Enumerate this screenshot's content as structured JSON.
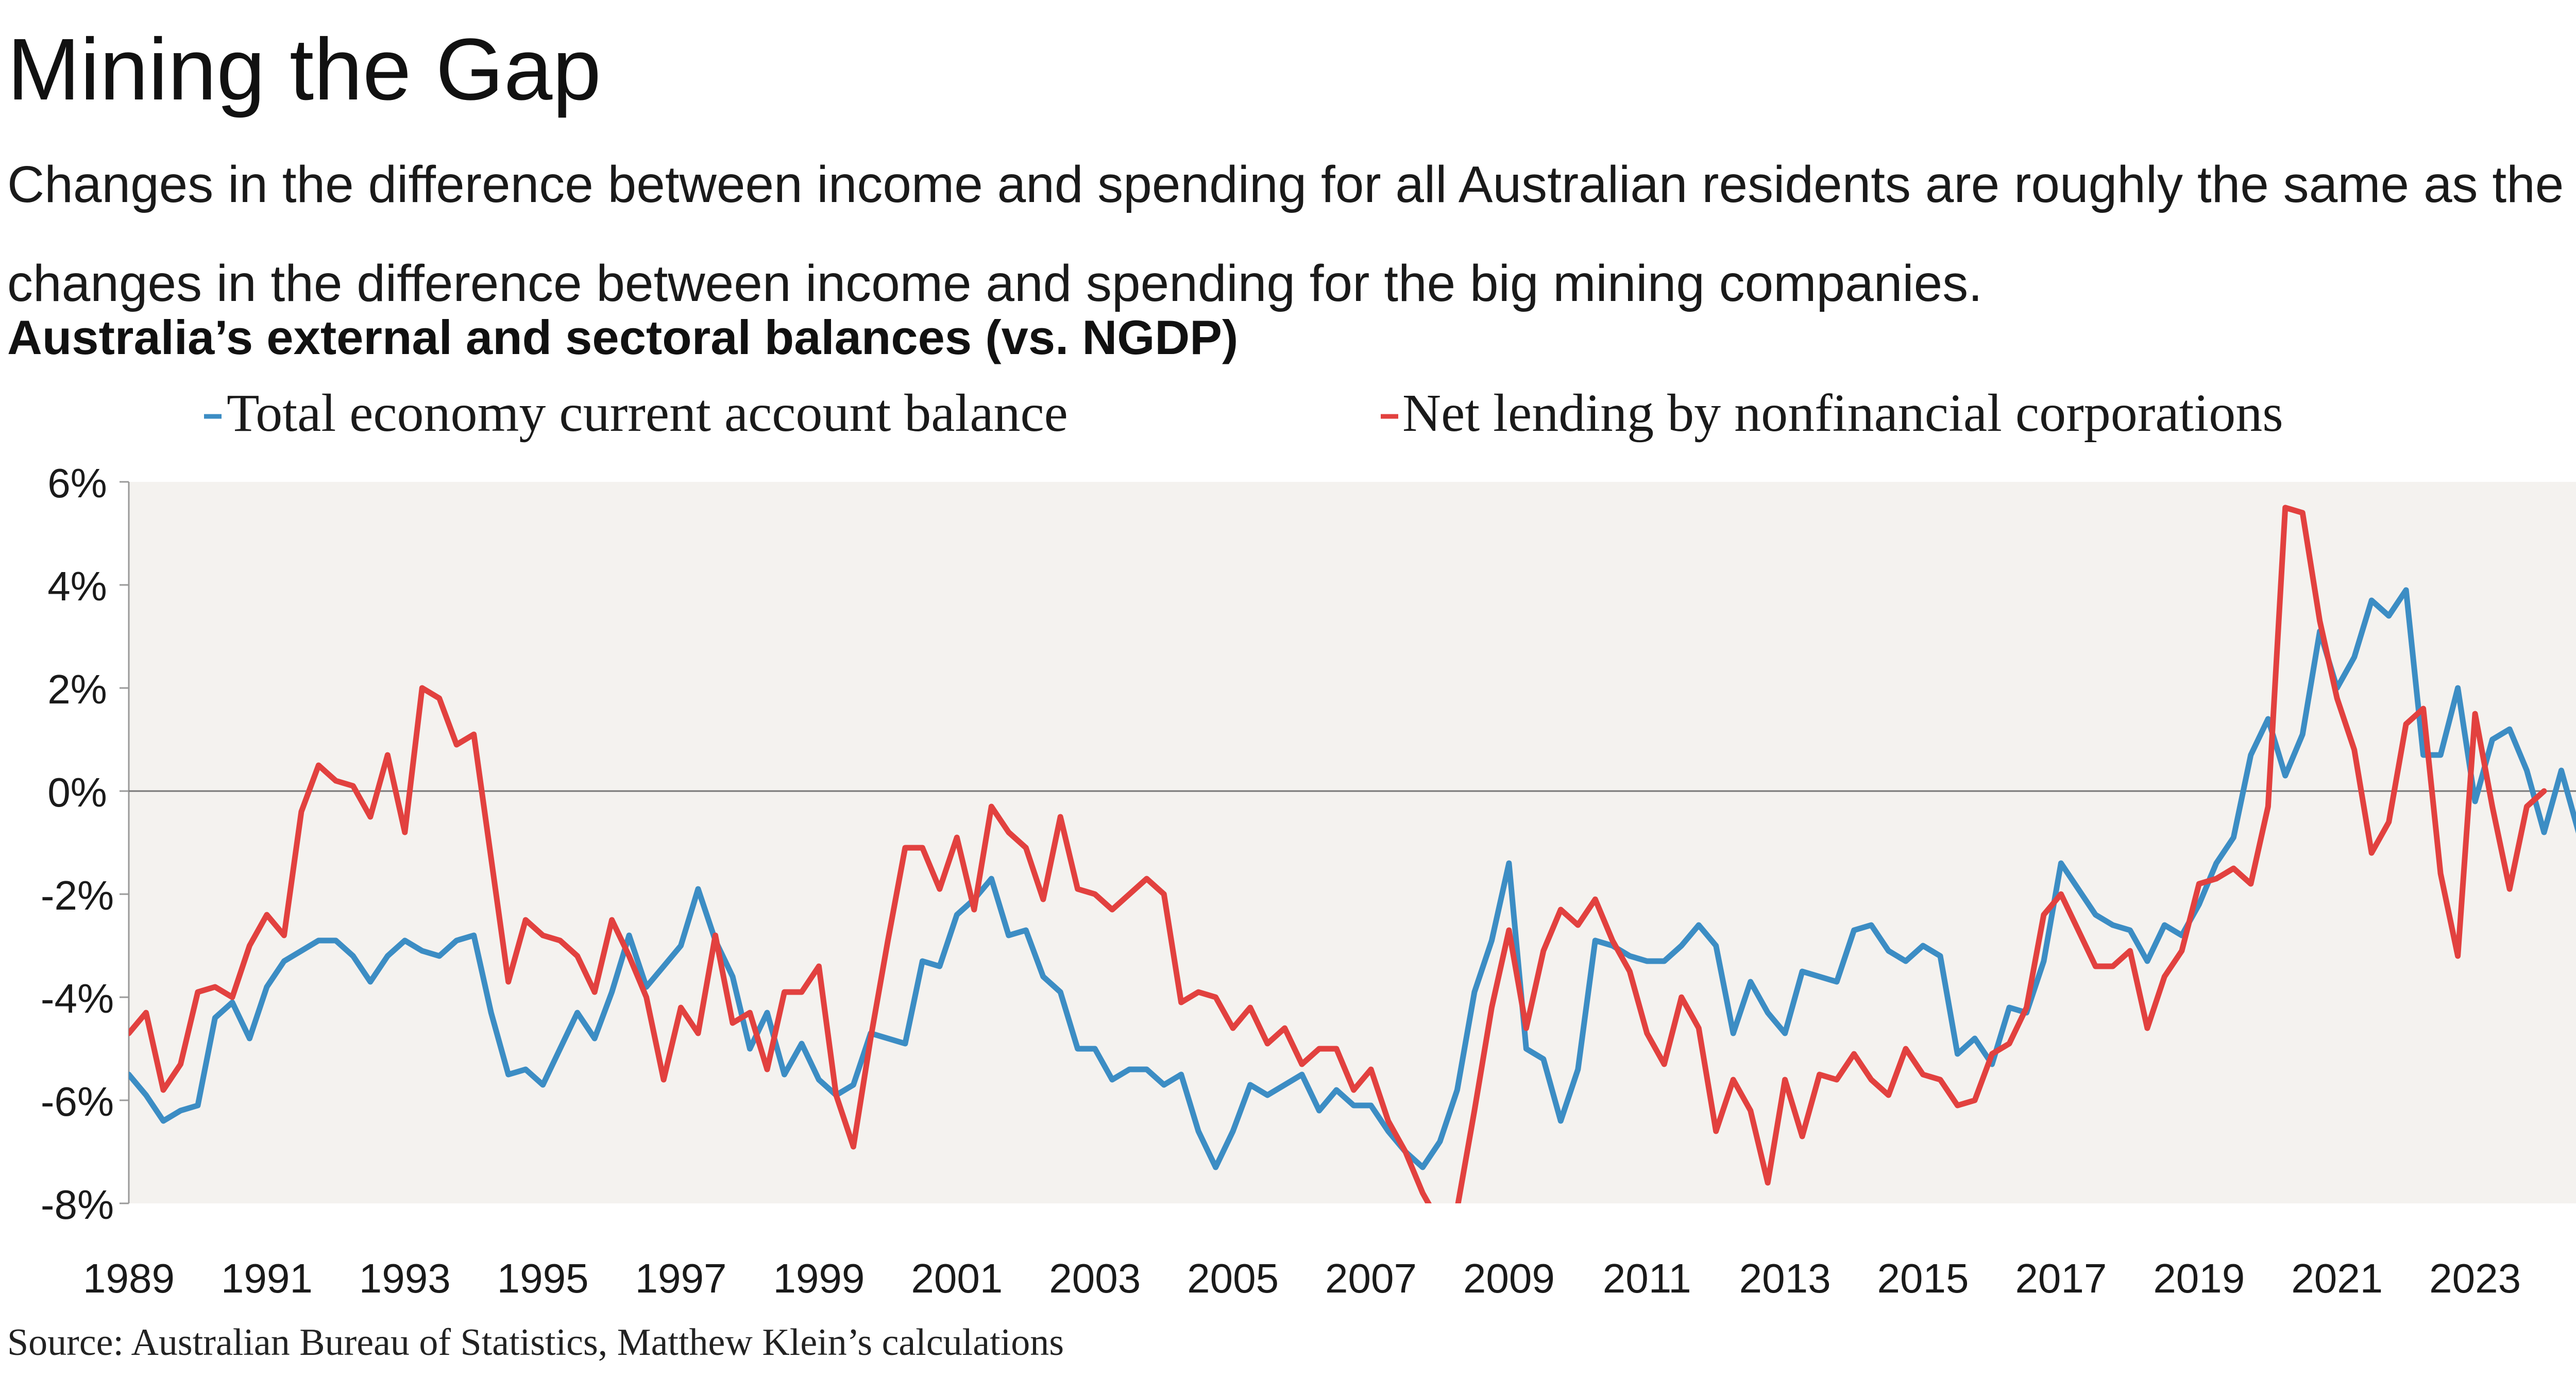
{
  "header": {
    "title": "Mining the Gap",
    "subtitle": "Changes in the difference between income and spending for all Australian residents are roughly the same as the changes in the difference between income and spending for the big mining companies.",
    "chart_title": "Australia’s external and sectoral balances (vs. NGDP)"
  },
  "footer": {
    "source": "Source: Australian Bureau of Statistics, Matthew Klein’s calculations"
  },
  "chart_data": {
    "type": "line",
    "title": "Australia’s external and sectoral balances (vs. NGDP)",
    "xlabel": "",
    "ylabel": "",
    "x_ticks": [
      1989,
      1991,
      1993,
      1995,
      1997,
      1999,
      2001,
      2003,
      2005,
      2007,
      2009,
      2011,
      2013,
      2015,
      2017,
      2019,
      2021,
      2023
    ],
    "y_ticks": [
      -8,
      -6,
      -4,
      -2,
      0,
      2,
      4,
      6
    ],
    "y_tick_labels": [
      "-8%",
      "-6%",
      "-4%",
      "-2%",
      "0%",
      "2%",
      "4%",
      "6%"
    ],
    "xlim": [
      1989,
      2024.5
    ],
    "ylim": [
      -8,
      6
    ],
    "legend_position": "top",
    "grid": false,
    "zero_line": true,
    "plot_background": "#f4f2ef",
    "frequency": "quarterly",
    "x_start": 1989.0,
    "x_step": 0.25,
    "series": [
      {
        "name": "Total economy current account balance",
        "color": "#3c8dc4",
        "values": [
          -5.5,
          -5.9,
          -6.4,
          -6.2,
          -6.1,
          -4.4,
          -4.1,
          -4.8,
          -3.8,
          -3.3,
          -3.1,
          -2.9,
          -2.9,
          -3.2,
          -3.7,
          -3.2,
          -2.9,
          -3.1,
          -3.2,
          -2.9,
          -2.8,
          -4.3,
          -5.5,
          -5.4,
          -5.7,
          -5.0,
          -4.3,
          -4.8,
          -3.9,
          -2.8,
          -3.8,
          -3.4,
          -3.0,
          -1.9,
          -2.9,
          -3.6,
          -5.0,
          -4.3,
          -5.5,
          -4.9,
          -5.6,
          -5.9,
          -5.7,
          -4.7,
          -4.8,
          -4.9,
          -3.3,
          -3.4,
          -2.4,
          -2.1,
          -1.7,
          -2.8,
          -2.7,
          -3.6,
          -3.9,
          -5.0,
          -5.0,
          -5.6,
          -5.4,
          -5.4,
          -5.7,
          -5.5,
          -6.6,
          -7.3,
          -6.6,
          -5.7,
          -5.9,
          -5.7,
          -5.5,
          -6.2,
          -5.8,
          -6.1,
          -6.1,
          -6.6,
          -7.0,
          -7.3,
          -6.8,
          -5.8,
          -3.9,
          -2.9,
          -1.4,
          -5.0,
          -5.2,
          -6.4,
          -5.4,
          -2.9,
          -3.0,
          -3.2,
          -3.3,
          -3.3,
          -3.0,
          -2.6,
          -3.0,
          -4.7,
          -3.7,
          -4.3,
          -4.7,
          -3.5,
          -3.6,
          -3.7,
          -2.7,
          -2.6,
          -3.1,
          -3.3,
          -3.0,
          -3.2,
          -5.1,
          -4.8,
          -5.3,
          -4.2,
          -4.3,
          -3.3,
          -1.4,
          -1.9,
          -2.4,
          -2.6,
          -2.7,
          -3.3,
          -2.6,
          -2.8,
          -2.2,
          -1.4,
          -0.9,
          0.7,
          1.4,
          0.3,
          1.1,
          3.1,
          2.0,
          2.6,
          3.7,
          3.4,
          3.9,
          0.7,
          0.7,
          2.0,
          -0.2,
          1.0,
          1.2,
          0.4,
          -0.8,
          0.4,
          -0.8
        ]
      },
      {
        "name": "Net lending by nonfinancial corporations",
        "color": "#e2413f",
        "values": [
          -4.7,
          -4.3,
          -5.8,
          -5.3,
          -3.9,
          -3.8,
          -4.0,
          -3.0,
          -2.4,
          -2.8,
          -0.4,
          0.5,
          0.2,
          0.1,
          -0.5,
          0.7,
          -0.8,
          2.0,
          1.8,
          0.9,
          1.1,
          -1.3,
          -3.7,
          -2.5,
          -2.8,
          -2.9,
          -3.2,
          -3.9,
          -2.5,
          -3.2,
          -4.0,
          -5.6,
          -4.2,
          -4.7,
          -2.8,
          -4.5,
          -4.3,
          -5.4,
          -3.9,
          -3.9,
          -3.4,
          -5.9,
          -6.9,
          -4.8,
          -2.9,
          -1.1,
          -1.1,
          -1.9,
          -0.9,
          -2.3,
          -0.3,
          -0.8,
          -1.1,
          -2.1,
          -0.5,
          -1.9,
          -2.0,
          -2.3,
          -2.0,
          -1.7,
          -2.0,
          -4.1,
          -3.9,
          -4.0,
          -4.6,
          -4.2,
          -4.9,
          -4.6,
          -5.3,
          -5.0,
          -5.0,
          -5.8,
          -5.4,
          -6.4,
          -7.0,
          -7.8,
          -8.4,
          -8.1,
          -6.2,
          -4.2,
          -2.7,
          -4.6,
          -3.1,
          -2.3,
          -2.6,
          -2.1,
          -2.9,
          -3.5,
          -4.7,
          -5.3,
          -4.0,
          -4.6,
          -6.6,
          -5.6,
          -6.2,
          -7.6,
          -5.6,
          -6.7,
          -5.5,
          -5.6,
          -5.1,
          -5.6,
          -5.9,
          -5.0,
          -5.5,
          -5.6,
          -6.1,
          -6.0,
          -5.1,
          -4.9,
          -4.2,
          -2.4,
          -2.0,
          -2.7,
          -3.4,
          -3.4,
          -3.1,
          -4.6,
          -3.6,
          -3.1,
          -1.8,
          -1.7,
          -1.5,
          -1.8,
          -0.3,
          5.5,
          5.4,
          3.3,
          1.8,
          0.8,
          -1.2,
          -0.6,
          1.3,
          1.6,
          -1.6,
          -3.2,
          1.5,
          -0.3,
          -1.9,
          -0.3,
          0.0
        ]
      }
    ]
  }
}
